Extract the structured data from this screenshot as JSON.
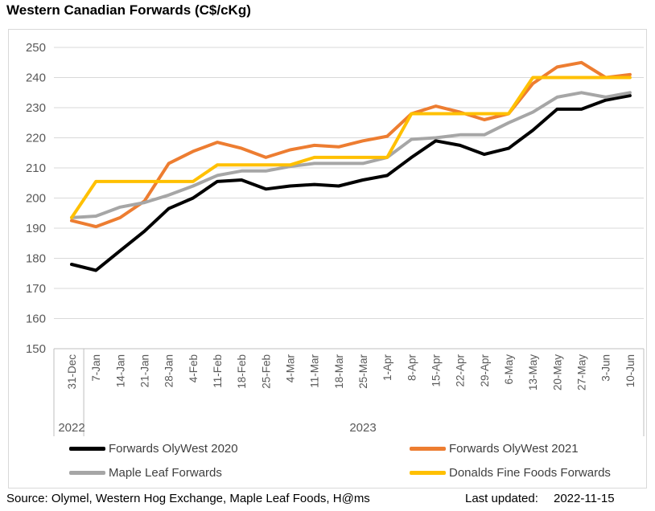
{
  "title": "Western Canadian Forwards (C$/cKg)",
  "footer": {
    "source": "Source: Olymel, Western Hog Exchange, Maple Leaf Foods, H@ms",
    "last_updated_label": "Last updated:",
    "last_updated_value": "2022-11-15"
  },
  "chart_data": {
    "type": "line",
    "title": "Western Canadian Forwards (C$/cKg)",
    "xlabel": "",
    "ylabel": "",
    "ylim": [
      150,
      250
    ],
    "yticks": [
      250,
      240,
      230,
      220,
      210,
      200,
      190,
      180,
      170,
      160,
      150
    ],
    "grid": "horizontal",
    "legend_position": "bottom-two-columns",
    "categories": [
      "31-Dec",
      "7-Jan",
      "14-Jan",
      "21-Jan",
      "28-Jan",
      "4-Feb",
      "11-Feb",
      "18-Feb",
      "25-Feb",
      "4-Mar",
      "11-Mar",
      "18-Mar",
      "25-Mar",
      "1-Apr",
      "8-Apr",
      "15-Apr",
      "22-Apr",
      "29-Apr",
      "6-May",
      "13-May",
      "20-May",
      "27-May",
      "3-Jun",
      "10-Jun"
    ],
    "year_labels": [
      "2022",
      "2023"
    ],
    "series": [
      {
        "name": "Forwards OlyWest 2020",
        "color": "#000000",
        "values": [
          178,
          176,
          182.5,
          189,
          196.5,
          200,
          205.5,
          206,
          203,
          204,
          204.5,
          204,
          206,
          207.5,
          213.5,
          219,
          217.5,
          214.5,
          216.5,
          222.5,
          229.5,
          229.5,
          232.5,
          234
        ]
      },
      {
        "name": "Forwards OlyWest 2021",
        "color": "#ED7D31",
        "values": [
          192.5,
          190.5,
          193.5,
          199,
          211.5,
          215.5,
          218.5,
          216.5,
          213.5,
          216,
          217.5,
          217,
          219,
          220.5,
          228,
          230.5,
          228.5,
          226,
          228,
          238,
          243.5,
          245,
          240,
          241
        ]
      },
      {
        "name": "Maple Leaf Forwards",
        "color": "#A6A6A6",
        "values": [
          193.5,
          194,
          197,
          198.5,
          201,
          204,
          207.5,
          209,
          209,
          210.5,
          211.5,
          211.5,
          211.5,
          213.5,
          219.5,
          220,
          221,
          221,
          225,
          228.5,
          233.5,
          235,
          233.5,
          235
        ]
      },
      {
        "name": "Donalds Fine Foods Forwards",
        "color": "#FFC000",
        "values": [
          193.5,
          205.5,
          205.5,
          205.5,
          205.5,
          205.5,
          211,
          211,
          211,
          211,
          213.5,
          213.5,
          213.5,
          213.5,
          228,
          228,
          228,
          228,
          228,
          240,
          240,
          240,
          240,
          240
        ]
      }
    ]
  }
}
